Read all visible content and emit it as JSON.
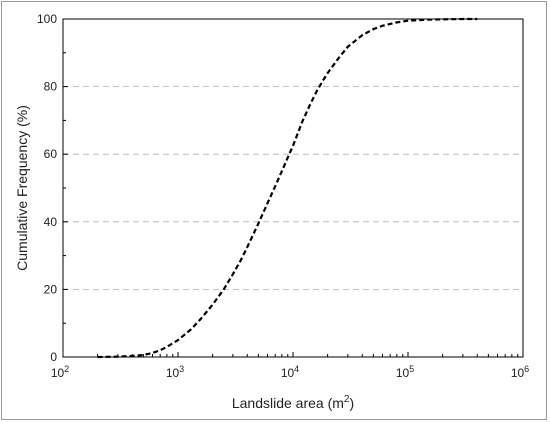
{
  "chart_data": {
    "type": "line",
    "title": "",
    "xlabel": "Landslide area (m",
    "xlabel_sup": "2",
    "xlabel_end": ")",
    "ylabel": "Cumulative Frequency (%)",
    "xscale": "log",
    "xlim": [
      100,
      1000000
    ],
    "ylim": [
      0,
      100
    ],
    "grid": "horizontal dashed",
    "x_ticks": [
      {
        "value": 100,
        "base": "10",
        "exp": "2"
      },
      {
        "value": 1000,
        "base": "10",
        "exp": "3"
      },
      {
        "value": 10000,
        "base": "10",
        "exp": "4"
      },
      {
        "value": 100000,
        "base": "10",
        "exp": "5"
      },
      {
        "value": 1000000,
        "base": "10",
        "exp": "6"
      }
    ],
    "y_ticks": [
      "0",
      "20",
      "40",
      "60",
      "80",
      "100"
    ],
    "series": [
      {
        "style": "dashed",
        "color": "#000000",
        "x": [
          200,
          300,
          400,
          500,
          600,
          700,
          800,
          1000,
          1300,
          1600,
          2000,
          2500,
          3000,
          3500,
          4000,
          5000,
          6000,
          7000,
          8000,
          9000,
          10000,
          12000,
          14000,
          16000,
          18000,
          20000,
          25000,
          30000,
          40000,
          50000,
          60000,
          80000,
          100000,
          150000,
          200000,
          300000,
          400000
        ],
        "y": [
          0,
          0.1,
          0.3,
          0.6,
          1.2,
          2.0,
          3.0,
          5.0,
          8.2,
          11.5,
          15.5,
          20.0,
          24.5,
          28.5,
          32.5,
          39.5,
          45.5,
          50.5,
          55.0,
          59.0,
          62.5,
          69.5,
          74.5,
          78.5,
          81.5,
          84.0,
          88.5,
          91.8,
          95.2,
          97.0,
          98.0,
          99.0,
          99.5,
          99.8,
          99.9,
          100,
          100
        ]
      }
    ]
  }
}
